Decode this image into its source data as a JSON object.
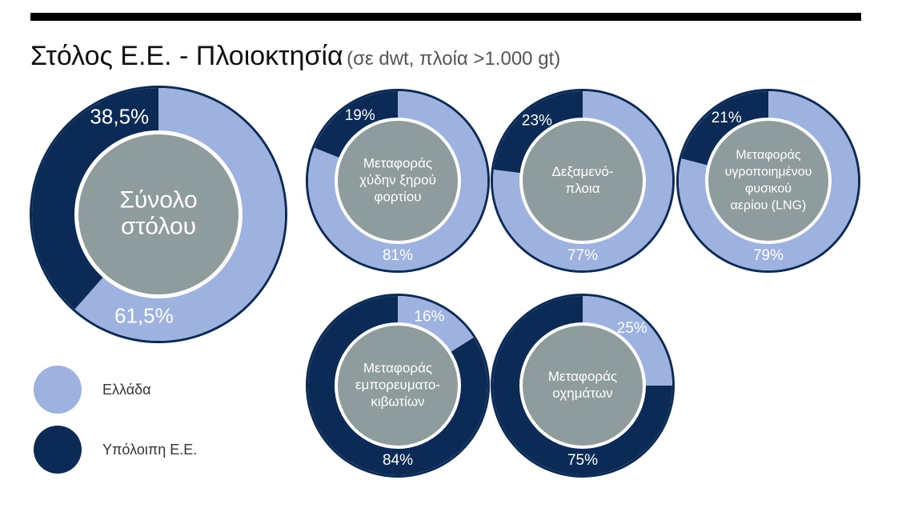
{
  "title": {
    "main": "Στόλος Ε.Ε. - Πλοιοκτησία",
    "sub": "(σε dwt, πλοία >1.000 gt)"
  },
  "colors": {
    "greece": "#9db2df",
    "rest_eu": "#0b2b56",
    "center": "#8f9c9e",
    "text_light": "#ffffff"
  },
  "legend": {
    "greece": "Ελλάδα",
    "rest_eu": "Υπόλοιπη Ε.Ε."
  },
  "chart_data": [
    {
      "type": "pie",
      "center_label": [
        "Σύνολο",
        "στόλου"
      ],
      "categories": [
        "Ελλάδα",
        "Υπόλοιπη Ε.Ε."
      ],
      "values": [
        61.5,
        38.5
      ],
      "value_labels": [
        "61,5%",
        "38,5%"
      ]
    },
    {
      "type": "pie",
      "center_label": [
        "Μεταφοράς",
        "χύδην ξηρού",
        "φορτίου"
      ],
      "categories": [
        "Ελλάδα",
        "Υπόλοιπη Ε.Ε."
      ],
      "values": [
        81,
        19
      ],
      "value_labels": [
        "81%",
        "19%"
      ]
    },
    {
      "type": "pie",
      "center_label": [
        "Δεξαμενό-",
        "πλοια"
      ],
      "categories": [
        "Ελλάδα",
        "Υπόλοιπη Ε.Ε."
      ],
      "values": [
        77,
        23
      ],
      "value_labels": [
        "77%",
        "23%"
      ]
    },
    {
      "type": "pie",
      "center_label": [
        "Μεταφοράς",
        "υγροποιημένου",
        "φυσικού",
        "αερίου (LNG)"
      ],
      "categories": [
        "Ελλάδα",
        "Υπόλοιπη Ε.Ε."
      ],
      "values": [
        79,
        21
      ],
      "value_labels": [
        "79%",
        "21%"
      ]
    },
    {
      "type": "pie",
      "center_label": [
        "Μεταφοράς",
        "εμπορευματο-",
        "κιβωτίων"
      ],
      "categories": [
        "Ελλάδα",
        "Υπόλοιπη Ε.Ε."
      ],
      "values": [
        16,
        84
      ],
      "value_labels": [
        "16%",
        "84%"
      ]
    },
    {
      "type": "pie",
      "center_label": [
        "Μεταφοράς",
        "οχημάτων"
      ],
      "categories": [
        "Ελλάδα",
        "Υπόλοιπη Ε.Ε."
      ],
      "values": [
        25,
        75
      ],
      "value_labels": [
        "25%",
        "75%"
      ]
    }
  ]
}
